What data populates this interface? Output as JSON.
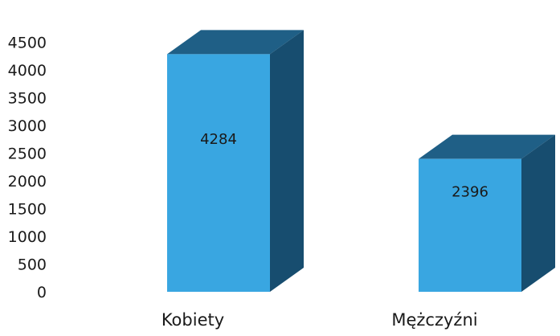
{
  "chart_data": {
    "type": "bar",
    "categories": [
      "Kobiety",
      "Mężczyźni"
    ],
    "values": [
      4284,
      2396
    ],
    "data_labels": [
      "4284",
      "2396"
    ],
    "ylim": [
      0,
      4500
    ],
    "y_ticks": [
      4500,
      4000,
      3500,
      3000,
      2500,
      2000,
      1500,
      1000,
      500,
      0
    ],
    "grid": false,
    "legend": "none",
    "style": "3d-column",
    "colors": {
      "front": "#39a6e1",
      "top": "#1f5f86",
      "side": "#174d6f",
      "text": "#1a1a1a"
    }
  }
}
